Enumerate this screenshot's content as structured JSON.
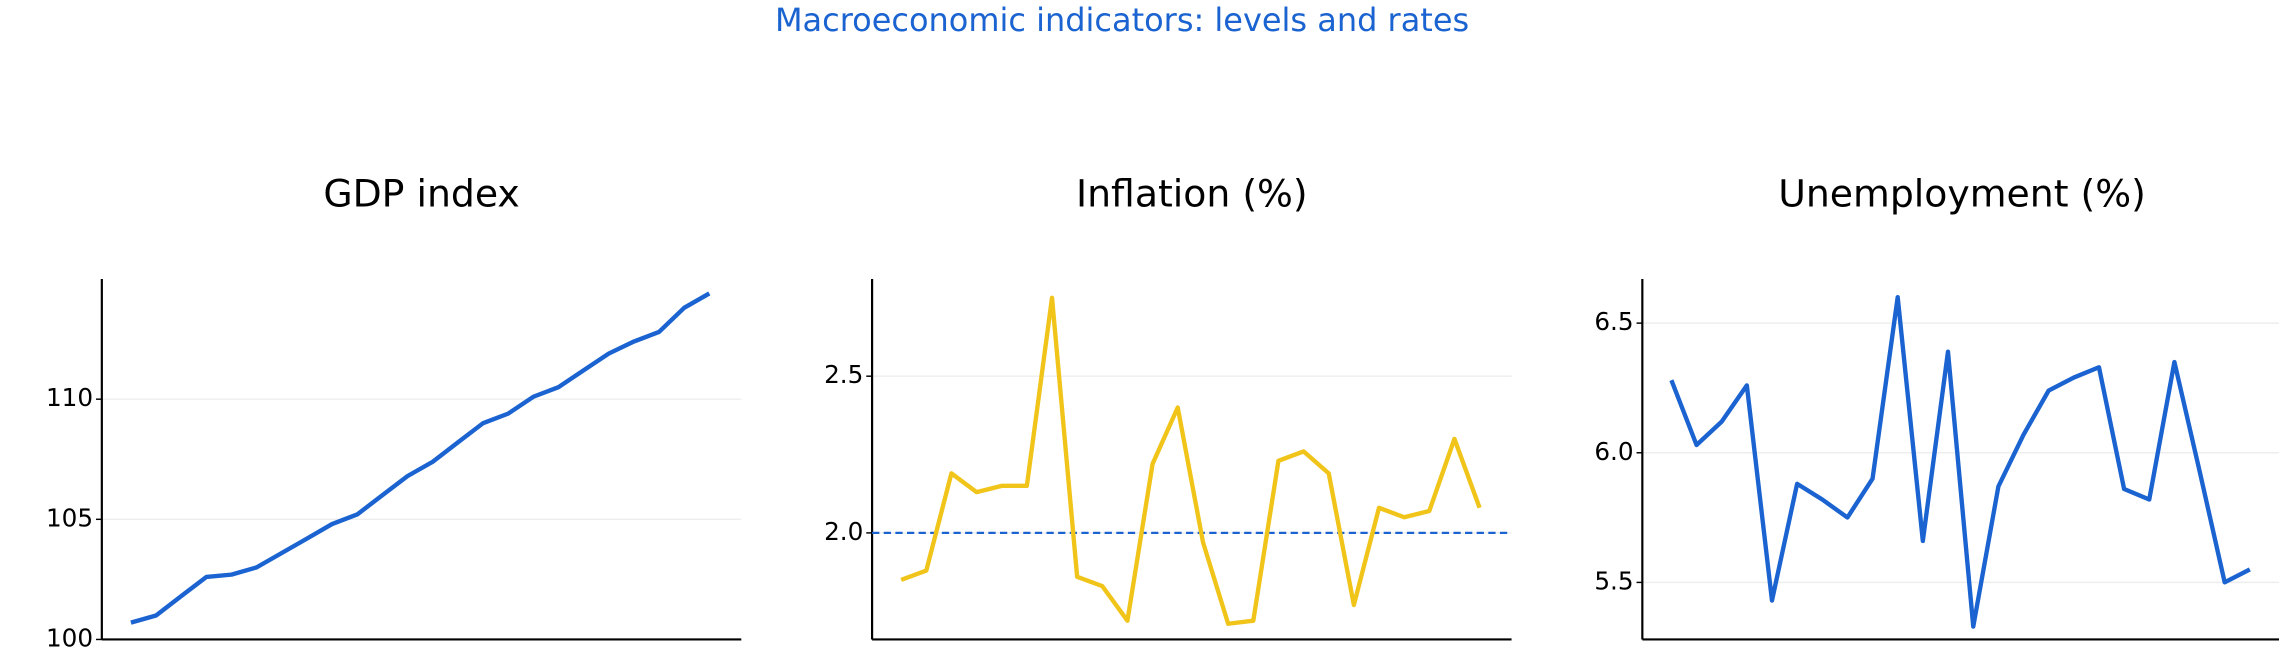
{
  "title": "Macroeconomic indicators: levels and rates",
  "title_color": "#1a63d0",
  "chart_data": [
    {
      "type": "line",
      "title": "GDP index",
      "color": "#1a63d0",
      "grid": true,
      "ylim": [
        100,
        115
      ],
      "yticks": [
        100,
        105,
        110
      ],
      "values": [
        100.7,
        101.0,
        101.8,
        102.6,
        102.7,
        103.0,
        103.6,
        104.2,
        104.8,
        105.2,
        106.0,
        106.8,
        107.4,
        108.2,
        109.0,
        109.4,
        110.1,
        110.5,
        111.2,
        111.9,
        112.4,
        112.8,
        113.8,
        114.4
      ]
    },
    {
      "type": "line",
      "title": "Inflation (%)",
      "color": "#f0c419",
      "grid": true,
      "ylim": [
        1.66,
        2.81
      ],
      "yticks": [
        {
          "value": 2,
          "label": "2.0"
        },
        2.5
      ],
      "reference_line": {
        "value": 2,
        "color": "#1a63d0",
        "dashed": true
      },
      "values": [
        1.85,
        1.88,
        2.19,
        2.13,
        2.15,
        2.15,
        2.75,
        1.86,
        1.83,
        1.72,
        2.22,
        2.4,
        1.97,
        1.71,
        1.72,
        2.23,
        2.26,
        2.19,
        1.77,
        2.08,
        2.05,
        2.07,
        2.3,
        2.08
      ]
    },
    {
      "type": "line",
      "title": "Unemployment (%)",
      "color": "#1a63d0",
      "grid": true,
      "ylim": [
        5.28,
        6.67
      ],
      "yticks": [
        5.5,
        {
          "value": 6,
          "label": "6.0"
        },
        6.5
      ],
      "values": [
        6.28,
        6.03,
        6.12,
        6.26,
        5.43,
        5.88,
        5.82,
        5.75,
        5.9,
        6.6,
        5.66,
        6.39,
        5.33,
        5.87,
        6.07,
        6.24,
        6.29,
        6.33,
        5.86,
        5.82,
        6.35,
        5.93,
        5.5,
        5.55
      ]
    }
  ]
}
